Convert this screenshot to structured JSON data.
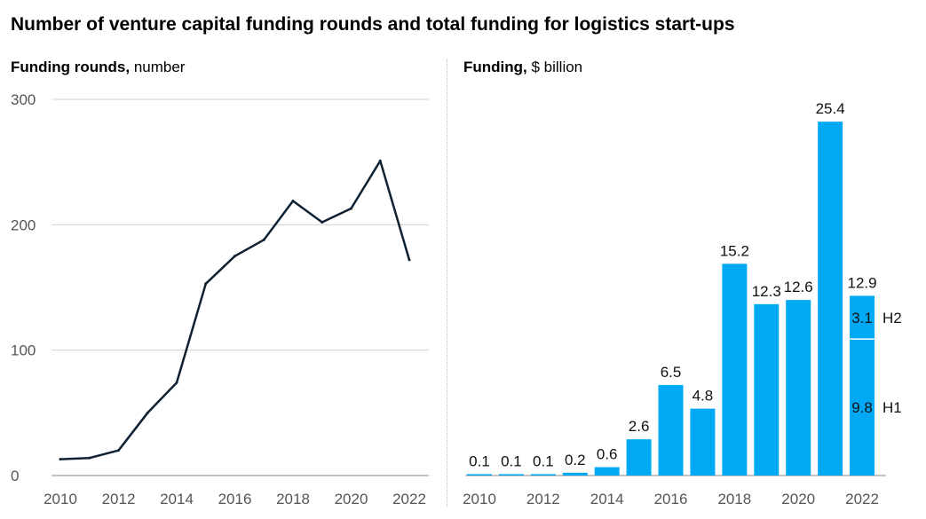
{
  "title": "Number of venture capital funding rounds and total funding for logistics start-ups",
  "colors": {
    "line": "#0e2133",
    "bar": "#00a9f4",
    "grid": "#d0d0d0",
    "axis_text": "#555555"
  },
  "chart_data": [
    {
      "type": "line",
      "title_bold": "Funding rounds,",
      "title_rest": " number",
      "x": [
        2010,
        2011,
        2012,
        2013,
        2014,
        2015,
        2016,
        2017,
        2018,
        2019,
        2020,
        2021,
        2022
      ],
      "values": [
        13,
        14,
        20,
        50,
        74,
        153,
        175,
        188,
        219,
        202,
        213,
        251,
        172
      ],
      "ylim": [
        0,
        300
      ],
      "yticks": [
        "0",
        "100",
        "200",
        "300"
      ],
      "xticks": [
        "2010",
        "2012",
        "2014",
        "2016",
        "2018",
        "2020",
        "2022"
      ],
      "grid": true
    },
    {
      "type": "bar",
      "title_bold": "Funding,",
      "title_rest": " $ billion",
      "categories": [
        "2010",
        "2011",
        "2012",
        "2013",
        "2014",
        "2015",
        "2016",
        "2017",
        "2018",
        "2019",
        "2020",
        "2021",
        "2022"
      ],
      "values": [
        0.1,
        0.1,
        0.1,
        0.2,
        0.6,
        2.6,
        6.5,
        4.8,
        15.2,
        12.3,
        12.6,
        25.4,
        12.9
      ],
      "labels": [
        "0.1",
        "0.1",
        "0.1",
        "0.2",
        "0.6",
        "2.6",
        "6.5",
        "4.8",
        "15.2",
        "12.3",
        "12.6",
        "25.4",
        "12.9"
      ],
      "xticks": [
        "2010",
        "2012",
        "2014",
        "2016",
        "2018",
        "2020",
        "2022"
      ],
      "ylim": [
        0,
        27
      ],
      "stack_2022": [
        {
          "name": "H1",
          "value": 9.8,
          "label": "9.8"
        },
        {
          "name": "H2",
          "value": 3.1,
          "label": "3.1"
        }
      ]
    }
  ]
}
